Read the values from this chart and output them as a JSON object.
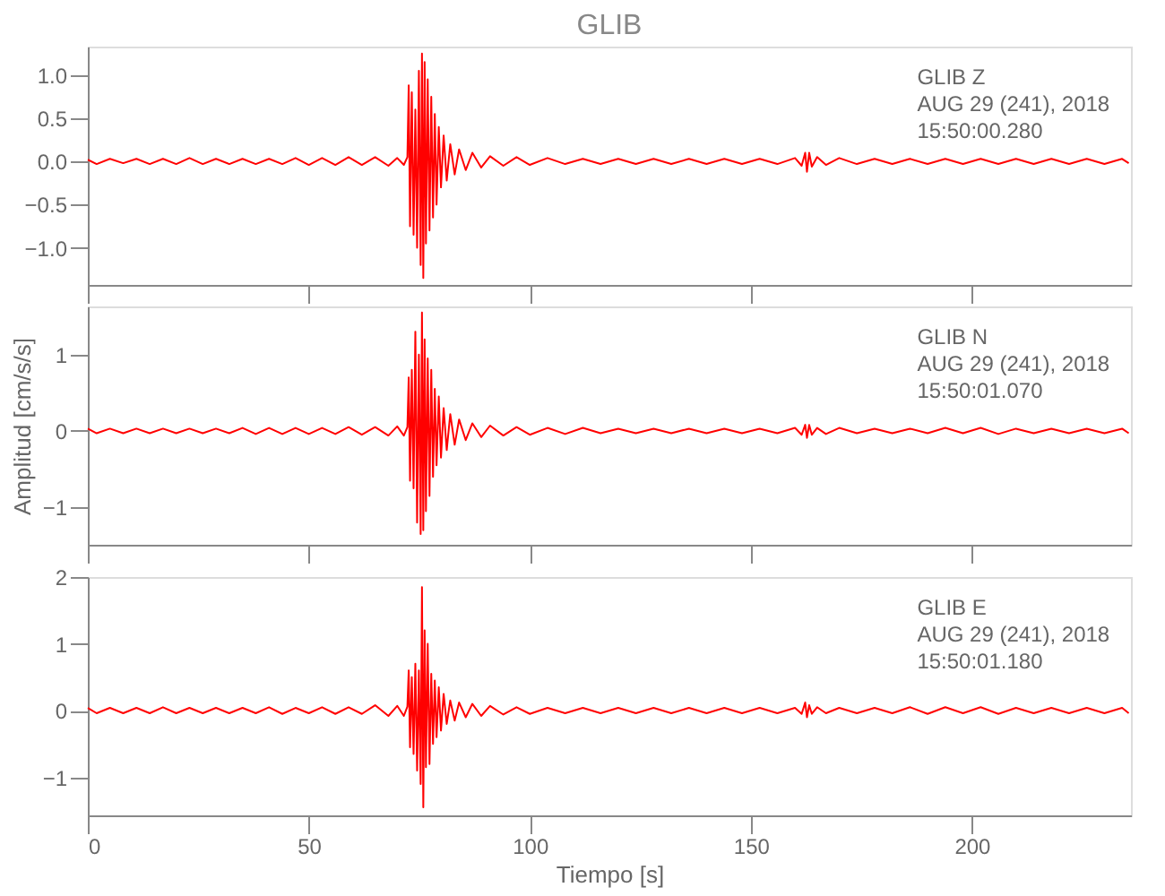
{
  "chart_data": [
    {
      "type": "line",
      "title": "GLIB",
      "annotations": [
        "GLIB   Z",
        "AUG 29 (241), 2018",
        "15:50:00.280"
      ],
      "xlim": [
        0,
        236
      ],
      "xticks": [
        0,
        50,
        100,
        150,
        200
      ],
      "ylim": [
        -1.43,
        1.33
      ],
      "yticks": [
        {
          "value": -1,
          "label": "−1.0"
        },
        {
          "value": -0.5,
          "label": "−0.5"
        },
        {
          "value": 0,
          "label": "0.0"
        },
        {
          "value": 0.5,
          "label": "0.5"
        },
        {
          "value": 1,
          "label": "1.0"
        }
      ],
      "tick_labels": "y",
      "grid": false,
      "series": [
        {
          "color": "#ff0000",
          "x": [
            0,
            2,
            5,
            8,
            11,
            14,
            17,
            20,
            23,
            26,
            29,
            32,
            35,
            38,
            41,
            44,
            47,
            50,
            53,
            56,
            59,
            62,
            65,
            68,
            70,
            71.5,
            72.3,
            72.6,
            72.9,
            73.3,
            73.7,
            74.1,
            74.5,
            74.9,
            75.3,
            75.6,
            75.9,
            76.2,
            76.5,
            76.9,
            77.3,
            77.7,
            78.1,
            78.5,
            78.9,
            79.4,
            79.9,
            80.5,
            81.2,
            82,
            83,
            84,
            85.5,
            87,
            89,
            91,
            94,
            97,
            100,
            104,
            108,
            112,
            116,
            120,
            124,
            128,
            132,
            136,
            140,
            144,
            148,
            152,
            156,
            160,
            161.5,
            162.3,
            162.7,
            163.2,
            163.8,
            165,
            167,
            170,
            174,
            178,
            182,
            186,
            190,
            194,
            198,
            202,
            206,
            210,
            214,
            218,
            222,
            226,
            230,
            234,
            235.5
          ],
          "values": [
            0.02,
            -0.03,
            0.03,
            -0.02,
            0.03,
            -0.03,
            0.03,
            -0.03,
            0.04,
            -0.03,
            0.03,
            -0.03,
            0.03,
            -0.03,
            0.03,
            -0.03,
            0.04,
            -0.04,
            0.04,
            -0.04,
            0.05,
            -0.04,
            0.05,
            -0.05,
            0.04,
            -0.04,
            0.05,
            0.88,
            -0.75,
            0.8,
            -0.85,
            0.6,
            -1.0,
            1.05,
            -1.2,
            1.25,
            -1.35,
            1.15,
            -0.95,
            0.95,
            -0.8,
            0.75,
            -0.65,
            0.55,
            -0.5,
            0.4,
            -0.3,
            0.3,
            -0.22,
            0.2,
            -0.15,
            0.14,
            -0.1,
            0.1,
            -0.07,
            0.06,
            -0.05,
            0.05,
            -0.04,
            0.04,
            -0.03,
            0.03,
            -0.03,
            0.03,
            -0.03,
            0.03,
            -0.03,
            0.03,
            -0.03,
            0.03,
            -0.03,
            0.03,
            -0.03,
            0.04,
            -0.05,
            0.1,
            -0.12,
            0.1,
            -0.06,
            0.05,
            -0.04,
            0.04,
            -0.03,
            0.03,
            -0.03,
            0.03,
            -0.03,
            0.03,
            -0.03,
            0.03,
            -0.03,
            0.03,
            -0.03,
            0.03,
            -0.03,
            0.03,
            -0.03,
            0.03,
            -0.02
          ]
        }
      ]
    },
    {
      "type": "line",
      "ylabel": "Amplitud [cm/s/s]",
      "annotations": [
        "GLIB   N",
        "AUG 29 (241), 2018",
        "15:50:01.070"
      ],
      "xlim": [
        0,
        236
      ],
      "xticks": [
        0,
        50,
        100,
        150,
        200
      ],
      "ylim": [
        -1.49,
        1.63
      ],
      "yticks": [
        -1,
        0,
        1
      ],
      "tick_labels": "y",
      "grid": false,
      "series": [
        {
          "color": "#ff0000",
          "x": [
            0,
            2,
            5,
            8,
            11,
            14,
            17,
            20,
            23,
            26,
            29,
            32,
            35,
            38,
            41,
            44,
            47,
            50,
            53,
            56,
            59,
            62,
            65,
            68,
            70,
            71.5,
            72.3,
            72.6,
            72.9,
            73.3,
            73.7,
            74.1,
            74.5,
            74.9,
            75.3,
            75.6,
            75.9,
            76.2,
            76.5,
            76.9,
            77.3,
            77.7,
            78.1,
            78.5,
            78.9,
            79.4,
            79.9,
            80.5,
            81.2,
            82,
            83,
            84,
            85.5,
            87,
            89,
            91,
            94,
            97,
            100,
            104,
            108,
            112,
            116,
            120,
            124,
            128,
            132,
            136,
            140,
            144,
            148,
            152,
            156,
            160,
            161.5,
            162.3,
            162.7,
            163.2,
            163.8,
            165,
            167,
            170,
            174,
            178,
            182,
            186,
            190,
            194,
            198,
            202,
            206,
            210,
            214,
            218,
            222,
            226,
            230,
            234,
            235.5
          ],
          "values": [
            0.03,
            -0.03,
            0.03,
            -0.03,
            0.03,
            -0.03,
            0.03,
            -0.03,
            0.03,
            -0.03,
            0.03,
            -0.03,
            0.04,
            -0.04,
            0.04,
            -0.04,
            0.04,
            -0.04,
            0.04,
            -0.04,
            0.05,
            -0.05,
            0.05,
            -0.06,
            0.06,
            -0.06,
            0.05,
            0.7,
            -0.65,
            0.8,
            -0.75,
            1.3,
            -1.2,
            1.0,
            -1.35,
            1.55,
            -1.3,
            1.2,
            -1.05,
            0.95,
            -0.85,
            0.8,
            -0.6,
            0.55,
            -0.45,
            0.45,
            -0.35,
            0.3,
            -0.25,
            0.22,
            -0.18,
            0.15,
            -0.12,
            0.1,
            -0.08,
            0.07,
            -0.06,
            0.05,
            -0.05,
            0.04,
            -0.04,
            0.04,
            -0.03,
            0.03,
            -0.03,
            0.03,
            -0.03,
            0.03,
            -0.03,
            0.03,
            -0.03,
            0.03,
            -0.03,
            0.04,
            -0.05,
            0.08,
            -0.09,
            0.08,
            -0.05,
            0.04,
            -0.04,
            0.04,
            -0.03,
            0.03,
            -0.03,
            0.03,
            -0.03,
            0.04,
            -0.03,
            0.04,
            -0.04,
            0.03,
            -0.03,
            0.03,
            -0.03,
            0.03,
            -0.03,
            0.03,
            -0.03
          ]
        }
      ]
    },
    {
      "type": "line",
      "xlabel": "Tiempo [s]",
      "annotations": [
        "GLIB   E",
        "AUG 29 (241), 2018",
        "15:50:01.180"
      ],
      "xlim": [
        0,
        236
      ],
      "xticks": [
        0,
        50,
        100,
        150,
        200
      ],
      "ylim": [
        -1.57,
        2
      ],
      "yticks": [
        -1,
        0,
        1,
        2
      ],
      "grid": false,
      "series": [
        {
          "color": "#ff0000",
          "x": [
            0,
            2,
            5,
            8,
            11,
            14,
            17,
            20,
            23,
            26,
            29,
            32,
            35,
            38,
            41,
            44,
            47,
            50,
            53,
            56,
            59,
            62,
            65,
            68,
            70,
            71.5,
            72.3,
            72.6,
            72.9,
            73.3,
            73.7,
            74.1,
            74.5,
            74.9,
            75.3,
            75.6,
            75.9,
            76.2,
            76.5,
            76.9,
            77.3,
            77.7,
            78.1,
            78.5,
            78.9,
            79.4,
            79.9,
            80.5,
            81.2,
            82,
            83,
            84,
            85.5,
            87,
            89,
            91,
            94,
            97,
            100,
            104,
            108,
            112,
            116,
            120,
            124,
            128,
            132,
            136,
            140,
            144,
            148,
            152,
            156,
            160,
            161.5,
            162.3,
            162.7,
            163.2,
            163.8,
            165,
            167,
            170,
            174,
            178,
            182,
            186,
            190,
            194,
            198,
            202,
            206,
            210,
            214,
            218,
            222,
            226,
            230,
            234,
            235.5
          ],
          "values": [
            0.04,
            -0.04,
            0.04,
            -0.04,
            0.04,
            -0.04,
            0.05,
            -0.04,
            0.04,
            -0.04,
            0.04,
            -0.04,
            0.04,
            -0.04,
            0.05,
            -0.05,
            0.04,
            -0.04,
            0.05,
            -0.05,
            0.05,
            -0.05,
            0.08,
            -0.08,
            0.07,
            -0.08,
            0.06,
            0.6,
            -0.55,
            0.5,
            -0.65,
            0.7,
            -0.9,
            0.6,
            -1.1,
            1.85,
            -1.45,
            1.2,
            -0.85,
            1.0,
            -0.8,
            0.55,
            -0.5,
            0.45,
            -0.4,
            0.35,
            -0.3,
            0.25,
            -0.2,
            0.15,
            -0.15,
            0.12,
            -0.1,
            0.1,
            -0.08,
            0.07,
            -0.06,
            0.05,
            -0.05,
            0.04,
            -0.04,
            0.04,
            -0.04,
            0.04,
            -0.04,
            0.04,
            -0.04,
            0.04,
            -0.04,
            0.04,
            -0.04,
            0.04,
            -0.04,
            0.04,
            -0.05,
            0.12,
            -0.1,
            0.08,
            -0.05,
            0.05,
            -0.04,
            0.04,
            -0.04,
            0.04,
            -0.04,
            0.05,
            -0.05,
            0.05,
            -0.04,
            0.05,
            -0.05,
            0.04,
            -0.04,
            0.04,
            -0.04,
            0.04,
            -0.04,
            0.04,
            -0.04
          ]
        }
      ]
    }
  ]
}
